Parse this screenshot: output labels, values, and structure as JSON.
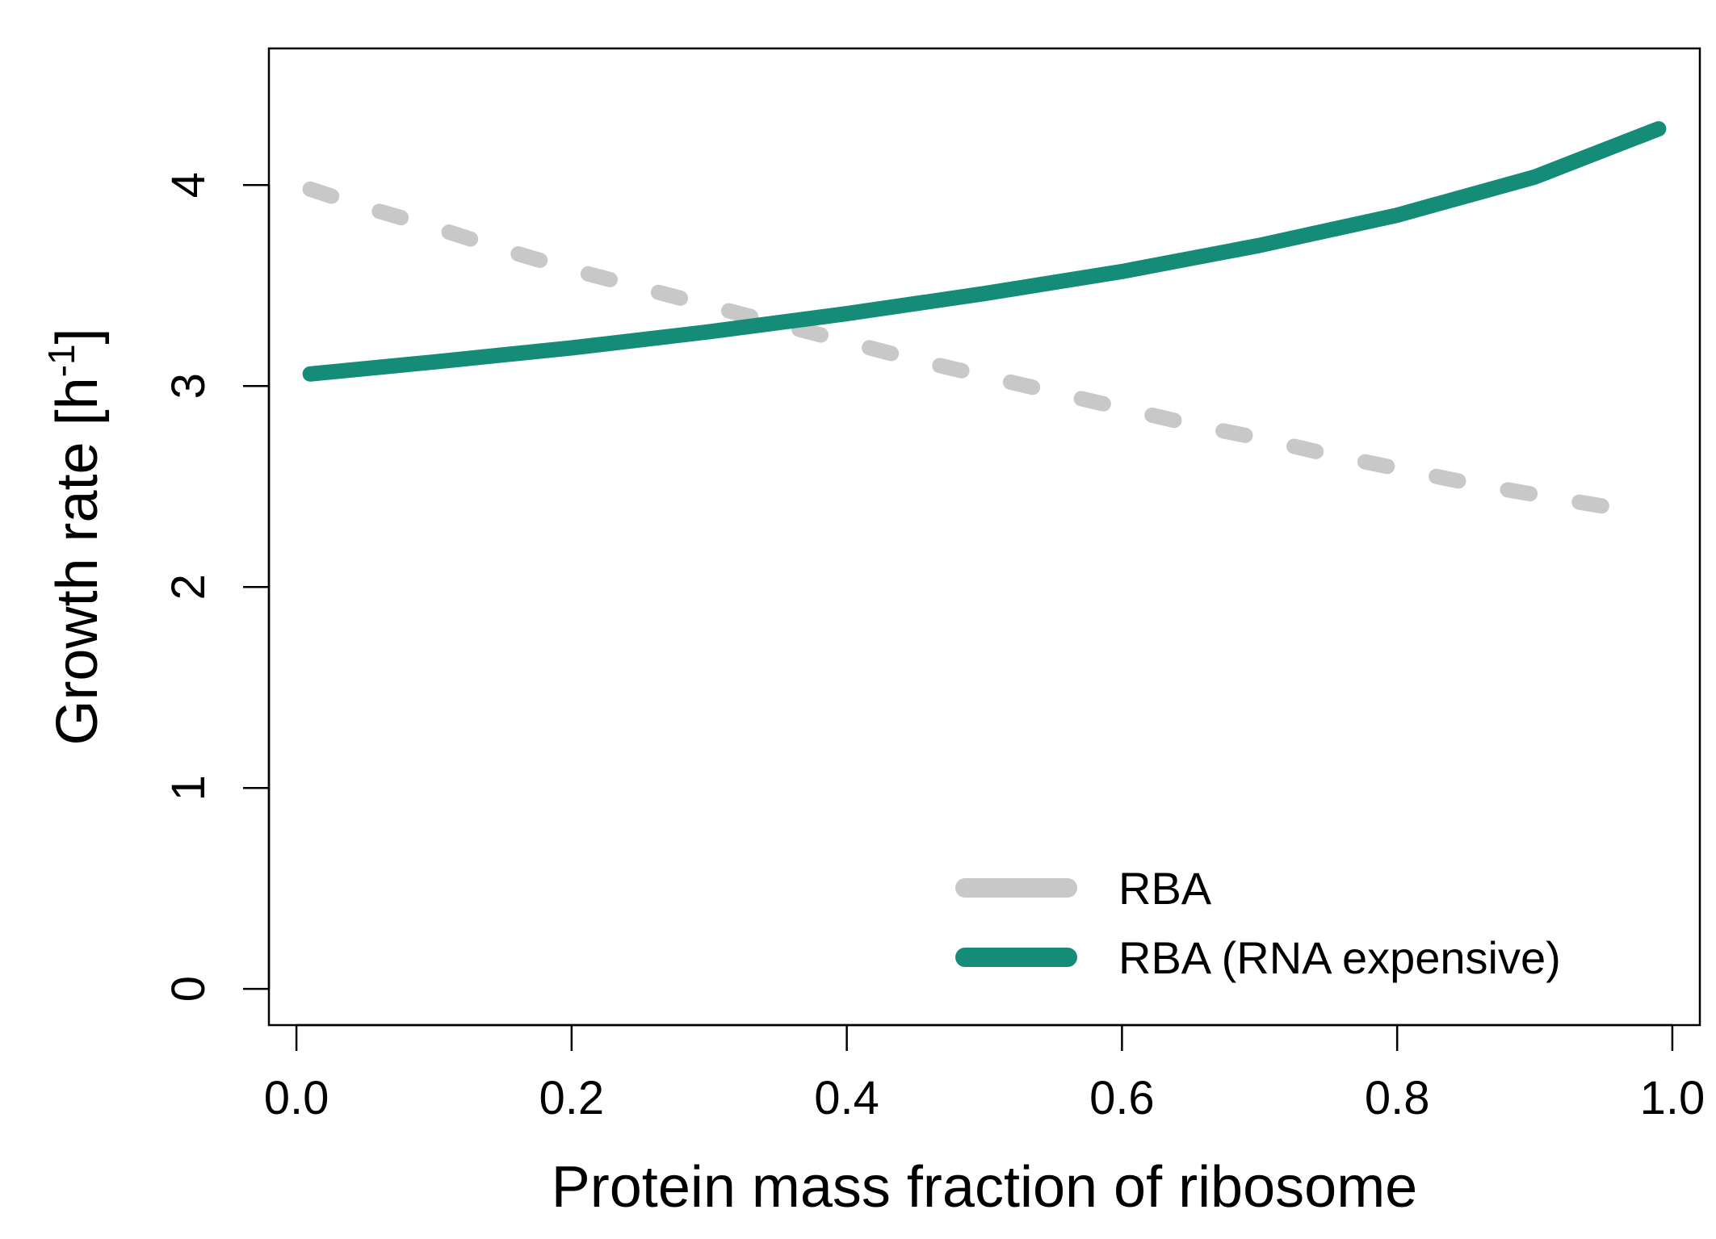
{
  "chart_data": {
    "type": "line",
    "xlabel": "Protein mass fraction of ribosome",
    "ylabel": {
      "main": "Growth rate [h",
      "sup": "-1",
      "close": "]"
    },
    "xlim": [
      -0.02,
      1.02
    ],
    "ylim": [
      -0.18,
      4.68
    ],
    "xticks": [
      0.0,
      0.2,
      0.4,
      0.6,
      0.8,
      1.0
    ],
    "xtick_labels": [
      "0.0",
      "0.2",
      "0.4",
      "0.6",
      "0.8",
      "1.0"
    ],
    "yticks": [
      0,
      1,
      2,
      3,
      4
    ],
    "ytick_labels": [
      "0",
      "1",
      "2",
      "3",
      "4"
    ],
    "grid": false,
    "legend_position": "bottom-right",
    "series": [
      {
        "name": "RBA",
        "color": "#c8c8c8",
        "style": "dashed",
        "x": [
          0.01,
          0.05,
          0.1,
          0.15,
          0.2,
          0.25,
          0.3,
          0.35,
          0.4,
          0.45,
          0.5,
          0.55,
          0.6,
          0.65,
          0.7,
          0.75,
          0.8,
          0.85,
          0.9,
          0.96
        ],
        "y": [
          3.98,
          3.89,
          3.79,
          3.68,
          3.58,
          3.49,
          3.4,
          3.31,
          3.22,
          3.13,
          3.05,
          2.97,
          2.89,
          2.81,
          2.74,
          2.66,
          2.59,
          2.52,
          2.46,
          2.39
        ]
      },
      {
        "name": "RBA (RNA expensive)",
        "color": "#148c78",
        "style": "solid",
        "x": [
          0.01,
          0.1,
          0.2,
          0.3,
          0.4,
          0.5,
          0.6,
          0.7,
          0.8,
          0.9,
          0.99
        ],
        "y": [
          3.06,
          3.12,
          3.19,
          3.27,
          3.36,
          3.46,
          3.57,
          3.7,
          3.85,
          4.04,
          4.28
        ]
      }
    ]
  }
}
